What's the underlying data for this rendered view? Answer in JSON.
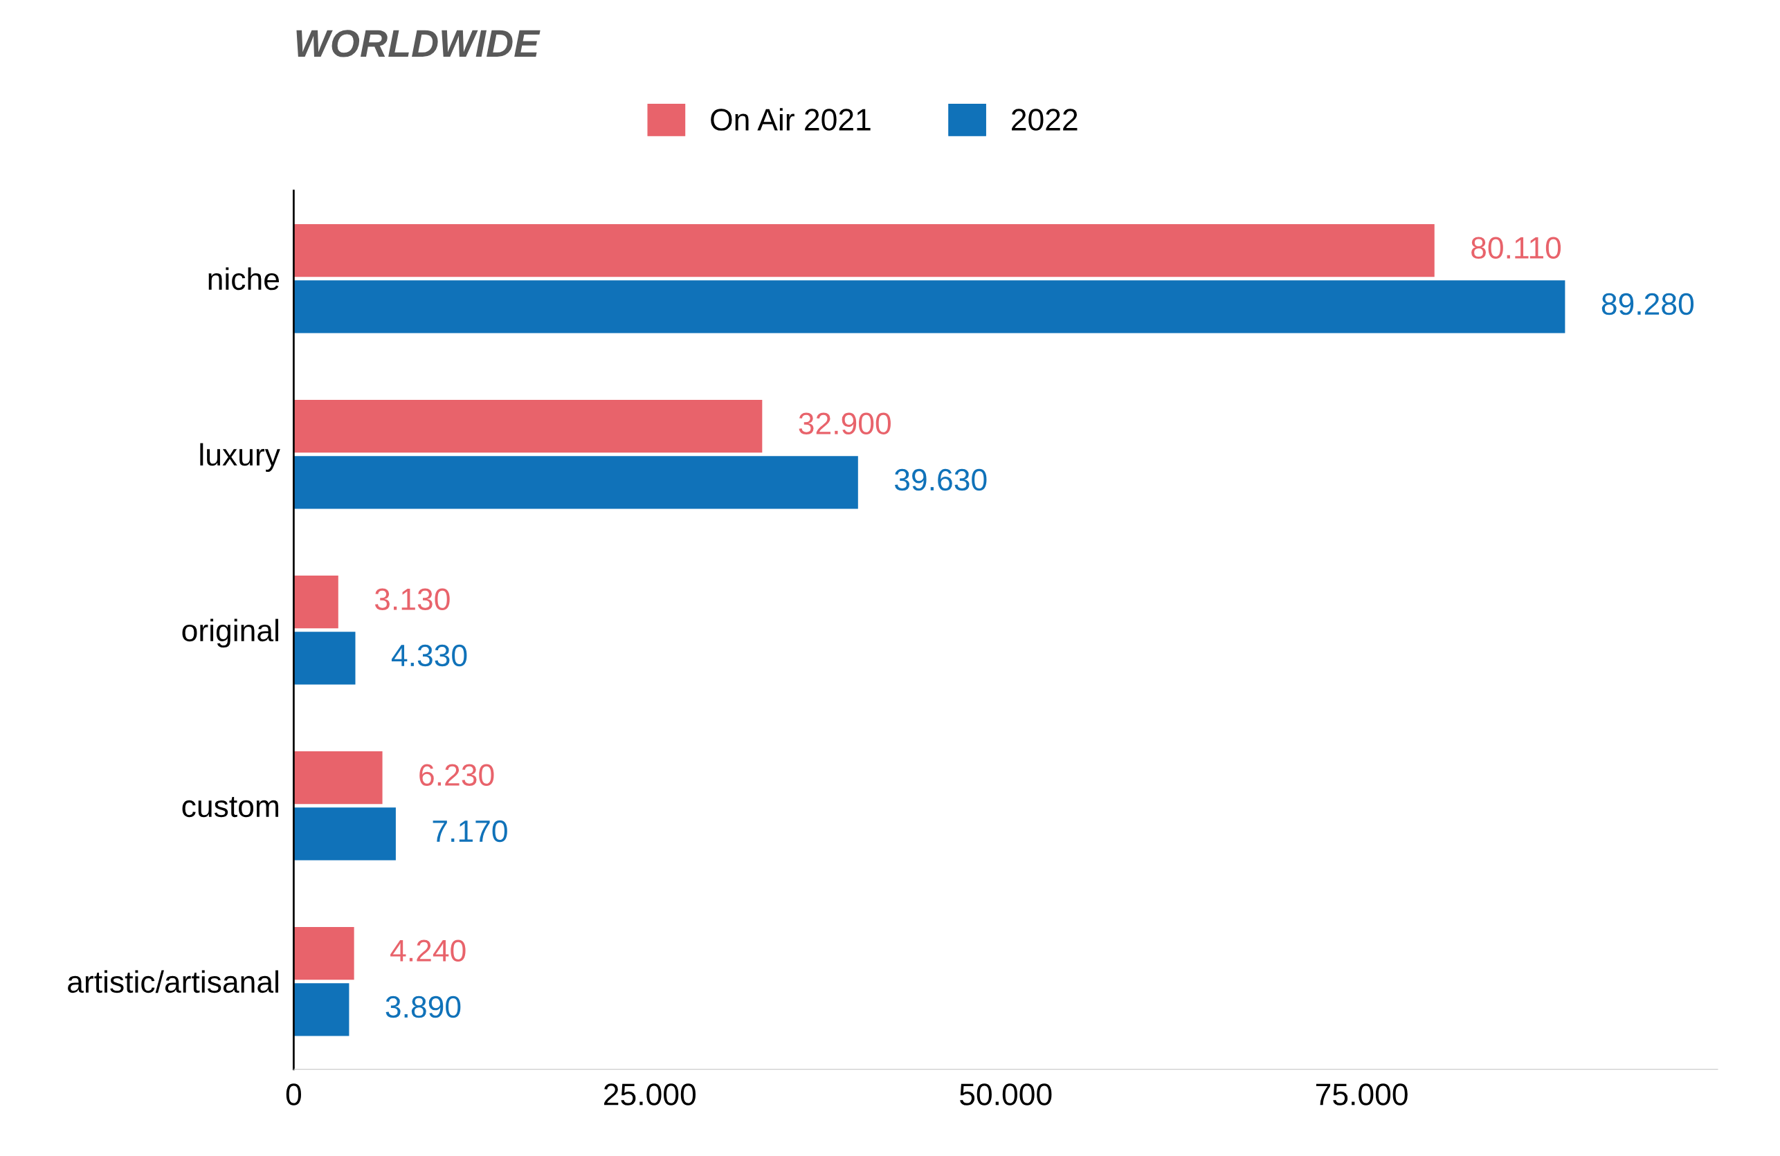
{
  "chart_data": {
    "type": "bar",
    "orientation": "horizontal",
    "title": "WORLDWIDE",
    "categories": [
      "niche",
      "luxury",
      "original",
      "custom",
      "artistic/artisanal"
    ],
    "series": [
      {
        "name": "On Air 2021",
        "color": "#e8636b",
        "values": [
          80110,
          32900,
          3130,
          6230,
          4240
        ],
        "value_labels": [
          "80.110",
          "32.900",
          "3.130",
          "6.230",
          "4.240"
        ]
      },
      {
        "name": "2022",
        "color": "#1072b9",
        "values": [
          89280,
          39630,
          4330,
          7170,
          3890
        ],
        "value_labels": [
          "89.280",
          "39.630",
          "4.330",
          "7.170",
          "3.890"
        ]
      }
    ],
    "xlim": [
      0,
      100000
    ],
    "xticks": [
      0,
      {
        "value": 25000,
        "label": "25.000"
      },
      {
        "value": 50000,
        "label": "50.000"
      },
      {
        "value": 75000,
        "label": "75.000"
      }
    ],
    "grid": false,
    "legend": "top"
  }
}
